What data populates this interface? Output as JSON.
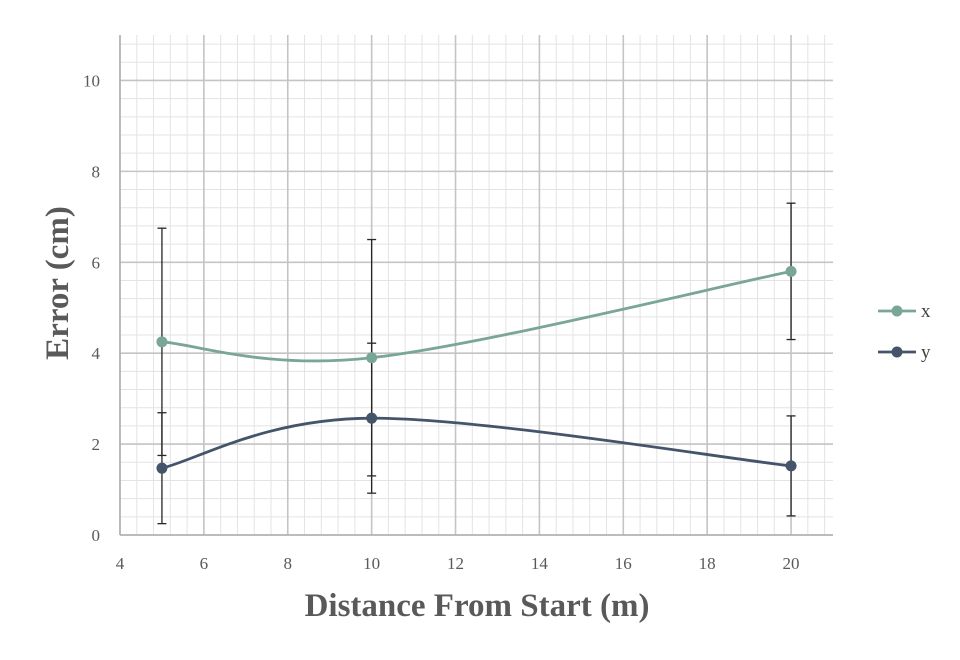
{
  "chart_data": {
    "type": "line",
    "xlabel": "Distance From Start (m)",
    "ylabel": "Error (cm)",
    "xlim": [
      4,
      21
    ],
    "ylim": [
      0,
      11
    ],
    "x_ticks": [
      4,
      6,
      8,
      10,
      12,
      14,
      16,
      18,
      20
    ],
    "y_ticks": [
      0,
      2,
      4,
      6,
      8,
      10
    ],
    "grid": true,
    "smooth": true,
    "legend_position": "right",
    "series": [
      {
        "name": "x",
        "color": "#7aa695",
        "x": [
          5,
          10,
          20
        ],
        "y": [
          4.25,
          3.9,
          5.8
        ],
        "error": [
          2.5,
          2.6,
          1.5
        ]
      },
      {
        "name": "y",
        "color": "#44546a",
        "x": [
          5,
          10,
          20
        ],
        "y": [
          1.47,
          2.57,
          1.52
        ],
        "error": [
          1.22,
          1.65,
          1.1
        ]
      }
    ]
  }
}
